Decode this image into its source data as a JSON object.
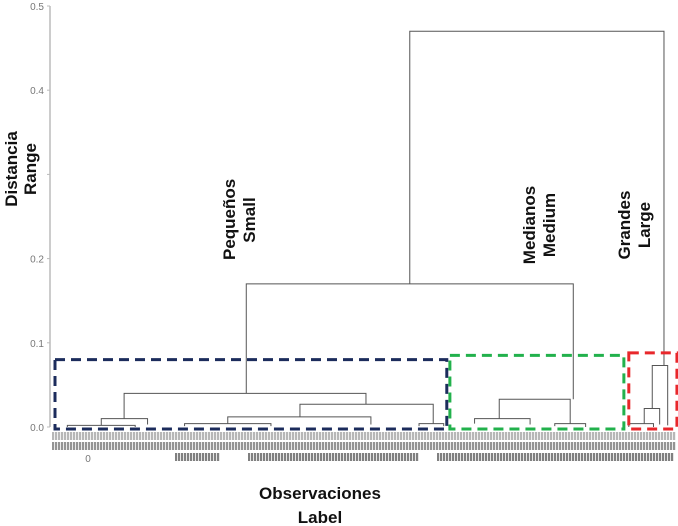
{
  "chart_data": {
    "type": "dendrogram",
    "ylabel": [
      "Distancia",
      "Range"
    ],
    "xlabel": [
      "Observaciones",
      "Label"
    ],
    "ylim": [
      0,
      0.5
    ],
    "y_ticks": [
      {
        "v": 0.0,
        "label": "0.0"
      },
      {
        "v": 0.1,
        "label": "0.1"
      },
      {
        "v": 0.2,
        "label": "0.2"
      },
      {
        "v": 0.3,
        "label": ""
      },
      {
        "v": 0.4,
        "label": "0.4"
      },
      {
        "v": 0.5,
        "label": "0.5"
      }
    ],
    "leaf_range": [
      0,
      100
    ],
    "first_leaf_label": "0",
    "links": [
      {
        "x1": 57.5,
        "x2": 98.7,
        "h": 0.47,
        "h1": 0.17,
        "h2": 0.073
      },
      {
        "x1": 31,
        "x2": 84,
        "h": 0.17,
        "h1": 0.04,
        "h2": 0.033
      },
      {
        "x1": 11.2,
        "x2": 50.4,
        "h": 0.04,
        "h1": 0.01,
        "h2": 0.027
      },
      {
        "x1": 7.5,
        "x2": 15,
        "h": 0.01,
        "h1": 0.002,
        "h2": 0.003
      },
      {
        "x1": 39.7,
        "x2": 61.3,
        "h": 0.027,
        "h1": 0.012,
        "h2": 0.004
      },
      {
        "x1": 28,
        "x2": 51.2,
        "h": 0.012,
        "h1": 0.004,
        "h2": 0.003
      },
      {
        "x1": 21,
        "x2": 35,
        "h": 0.004,
        "h1": 0.001,
        "h2": 0.001
      },
      {
        "x1": 59,
        "x2": 63,
        "h": 0.004,
        "h1": 0.001,
        "h2": 0.001
      },
      {
        "x1": 2,
        "x2": 13,
        "h": 0.002,
        "h1": 0,
        "h2": 0
      },
      {
        "x1": 72,
        "x2": 83.5,
        "h": 0.033,
        "h1": 0.01,
        "h2": 0.004
      },
      {
        "x1": 68,
        "x2": 77,
        "h": 0.01,
        "h1": 0.004,
        "h2": 0.003
      },
      {
        "x1": 81,
        "x2": 86,
        "h": 0.004,
        "h1": 0.001,
        "h2": 0
      },
      {
        "x1": 96.8,
        "x2": 99.3,
        "h": 0.073,
        "h1": 0.022,
        "h2": 0.002
      },
      {
        "x1": 95.5,
        "x2": 98,
        "h": 0.022,
        "h1": 0.004,
        "h2": 0.003
      },
      {
        "x1": 93,
        "x2": 97,
        "h": 0.004,
        "h1": 0,
        "h2": 0
      }
    ],
    "clusters": [
      {
        "name": "Pequeños",
        "name_en": "Small",
        "x": [
          0,
          63.5
        ],
        "h": 0.08,
        "color": "#1c2c5c"
      },
      {
        "name": "Medianos",
        "name_en": "Medium",
        "x": [
          64,
          92.2
        ],
        "h": 0.085,
        "color": "#22b14c"
      },
      {
        "name": "Grandes",
        "name_en": "Large",
        "x": [
          93,
          100.8
        ],
        "h": 0.088,
        "color": "#e8272b"
      }
    ]
  }
}
